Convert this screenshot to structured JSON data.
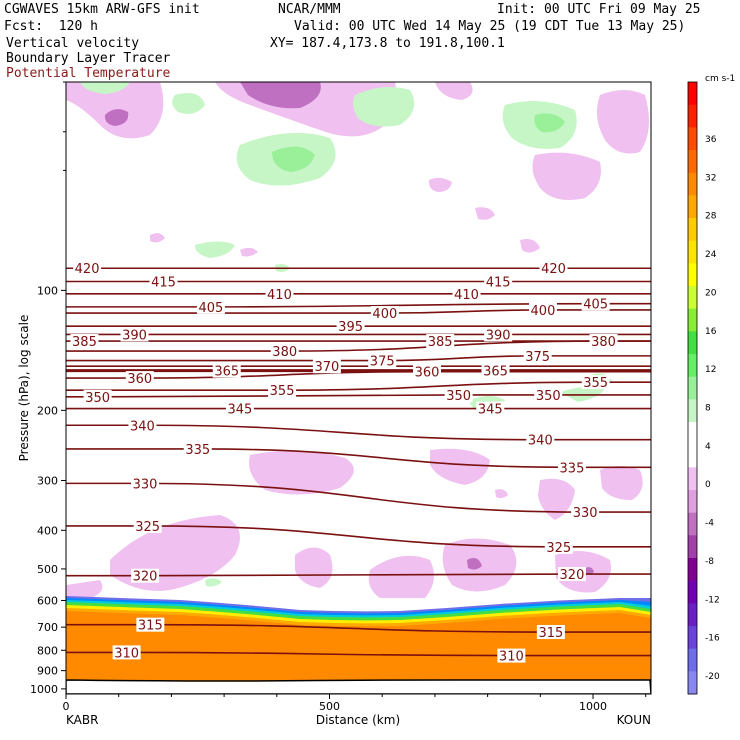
{
  "header": {
    "model": "CGWAVES 15km ARW-GFS init",
    "org": "NCAR/MMM",
    "init": "Init: 00 UTC Fri 09 May 25",
    "fcst": "Fcst:  120 h",
    "valid": "Valid: 00 UTC Wed 14 May 25 (19 CDT Tue 13 May 25)",
    "field1": "Vertical velocity",
    "xy": "XY= 187.4,173.8 to 191.8,100.1",
    "field2": "Boundary Layer Tracer",
    "field3": "Potential Temperature"
  },
  "chart_data": {
    "type": "contour-cross-section",
    "xlabel": "Distance (km)",
    "ylabel": "Pressure (hPa), log scale",
    "xlim": [
      0,
      1110
    ],
    "ylim": [
      1030,
      30
    ],
    "y_scale": "log",
    "x_ticks": [
      0,
      500,
      1000
    ],
    "y_ticks": [
      100,
      200,
      300,
      400,
      500,
      600,
      700,
      800,
      900,
      1000
    ],
    "endpoints": {
      "left": "KABR",
      "right": "KOUN"
    },
    "colorbar": {
      "units": "cm s-1",
      "ticks": [
        36,
        32,
        28,
        24,
        20,
        16,
        12,
        8,
        4,
        0,
        -4,
        -8,
        -12,
        -16,
        -20
      ],
      "colors": [
        "#ff0000",
        "#ff2200",
        "#ff4a00",
        "#ff6a00",
        "#ff8a00",
        "#ffa800",
        "#ffcc00",
        "#ffe400",
        "#ffff00",
        "#ccff33",
        "#88ee33",
        "#44dd44",
        "#66ee66",
        "#99f099",
        "#c6f6c6",
        "#ffffff",
        "#ffffff",
        "#f0c0f0",
        "#e0a0e0",
        "#c070c0",
        "#a040a8",
        "#800090",
        "#7000b0",
        "#6a20c0",
        "#6a44d8",
        "#6e6ee8",
        "#8888f0"
      ]
    },
    "theta_contours": [
      {
        "value": 420,
        "labels": [
          [
            40,
            88
          ],
          [
            925,
            88
          ]
        ]
      },
      {
        "value": 415,
        "labels": [
          [
            185,
            95
          ],
          [
            820,
            95
          ]
        ]
      },
      {
        "value": 410,
        "labels": [
          [
            405,
            102
          ],
          [
            760,
            102
          ]
        ]
      },
      {
        "value": 405,
        "labels": [
          [
            275,
            110
          ],
          [
            1005,
            108
          ]
        ]
      },
      {
        "value": 400,
        "labels": [
          [
            605,
            114
          ],
          [
            905,
            112
          ]
        ]
      },
      {
        "value": 395,
        "labels": [
          [
            540,
            123
          ]
        ]
      },
      {
        "value": 390,
        "labels": [
          [
            130,
            129
          ],
          [
            820,
            129
          ]
        ]
      },
      {
        "value": 385,
        "labels": [
          [
            35,
            134
          ],
          [
            710,
            134
          ]
        ]
      },
      {
        "value": 380,
        "labels": [
          [
            415,
            142
          ],
          [
            1020,
            134
          ]
        ]
      },
      {
        "value": 375,
        "labels": [
          [
            600,
            150
          ],
          [
            895,
            146
          ]
        ]
      },
      {
        "value": 370,
        "labels": [
          [
            495,
            155
          ]
        ]
      },
      {
        "value": 365,
        "labels": [
          [
            305,
            159
          ],
          [
            815,
            159
          ]
        ]
      },
      {
        "value": 360,
        "labels": [
          [
            140,
            166
          ],
          [
            685,
            160
          ]
        ]
      },
      {
        "value": 355,
        "labels": [
          [
            410,
            178
          ],
          [
            1005,
            170
          ]
        ]
      },
      {
        "value": 350,
        "labels": [
          [
            60,
            185
          ],
          [
            745,
            183
          ],
          [
            915,
            183
          ]
        ]
      },
      {
        "value": 345,
        "labels": [
          [
            330,
            198
          ],
          [
            805,
            198
          ]
        ]
      },
      {
        "value": 340,
        "labels": [
          [
            145,
            218
          ],
          [
            900,
            237
          ]
        ]
      },
      {
        "value": 335,
        "labels": [
          [
            250,
            250
          ],
          [
            960,
            278
          ]
        ]
      },
      {
        "value": 330,
        "labels": [
          [
            150,
            305
          ],
          [
            985,
            360
          ]
        ]
      },
      {
        "value": 325,
        "labels": [
          [
            155,
            390
          ],
          [
            935,
            440
          ]
        ]
      },
      {
        "value": 320,
        "labels": [
          [
            150,
            520
          ],
          [
            960,
            515
          ]
        ]
      },
      {
        "value": 315,
        "labels": [
          [
            160,
            690
          ],
          [
            920,
            720
          ]
        ]
      },
      {
        "value": 310,
        "labels": [
          [
            115,
            810
          ],
          [
            845,
            825
          ]
        ]
      }
    ]
  }
}
